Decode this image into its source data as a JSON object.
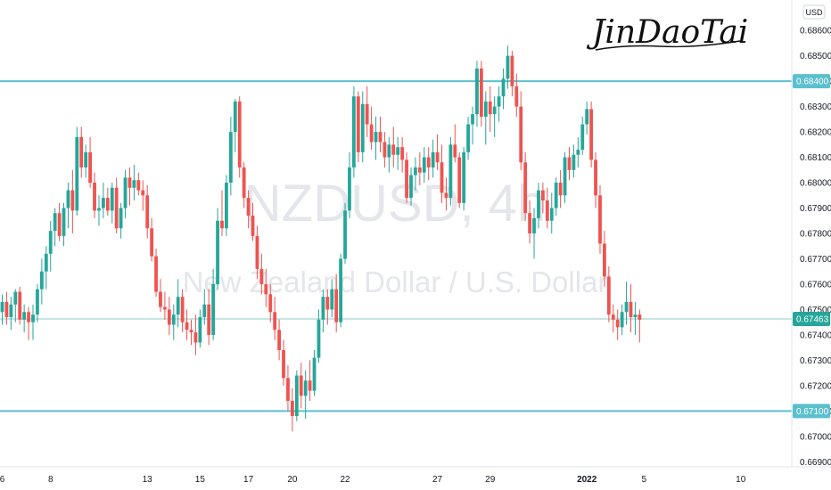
{
  "chart_data": {
    "type": "candlestick",
    "watermark": {
      "symbol": "NZDUSD, 4h",
      "description": "New Zealand Dollar / U.S. Dollar"
    },
    "signature": "JinDaoTai",
    "currency": "USD",
    "y_ticks": [
      "0.68600",
      "0.68500",
      "0.68400",
      "0.68300",
      "0.68200",
      "0.68100",
      "0.68000",
      "0.67900",
      "0.67800",
      "0.67700",
      "0.67600",
      "0.67500",
      "0.67400",
      "0.67300",
      "0.67200",
      "0.67100",
      "0.67000",
      "0.66900"
    ],
    "y_tick_values": [
      0.686,
      0.685,
      0.684,
      0.683,
      0.682,
      0.681,
      0.68,
      0.679,
      0.678,
      0.677,
      0.676,
      0.675,
      0.674,
      0.673,
      0.672,
      0.671,
      0.67,
      0.669
    ],
    "ylim": [
      0.6688,
      0.6872
    ],
    "x_ticks": [
      {
        "label": "6",
        "index": 0
      },
      {
        "label": "8",
        "index": 11
      },
      {
        "label": "13",
        "index": 33
      },
      {
        "label": "15",
        "index": 45
      },
      {
        "label": "17",
        "index": 56
      },
      {
        "label": "20",
        "index": 66
      },
      {
        "label": "22",
        "index": 78
      },
      {
        "label": "27",
        "index": 99
      },
      {
        "label": "29",
        "index": 111
      },
      {
        "label": "2022",
        "index": 133,
        "bold": true
      },
      {
        "label": "5",
        "index": 146
      },
      {
        "label": "10",
        "index": 168
      }
    ],
    "horizontal_levels": [
      {
        "value": 0.684,
        "label": "0.68400",
        "color": "#5bc0ce"
      },
      {
        "value": 0.671,
        "label": "0.67100",
        "color": "#5bc0ce"
      }
    ],
    "current_price": {
      "value": 0.67463,
      "label": "0.67463",
      "color": "#26a69a"
    },
    "colors": {
      "up": "#26a69a",
      "down": "#ef5350",
      "level": "#5bc0ce"
    },
    "candles_ohlc": [
      [
        0.6749,
        0.6756,
        0.6744,
        0.6753
      ],
      [
        0.6753,
        0.6757,
        0.6744,
        0.6747
      ],
      [
        0.6747,
        0.6755,
        0.6742,
        0.6752
      ],
      [
        0.6752,
        0.6758,
        0.6745,
        0.6757
      ],
      [
        0.6757,
        0.6759,
        0.6744,
        0.6746
      ],
      [
        0.6746,
        0.6752,
        0.6741,
        0.6749
      ],
      [
        0.6749,
        0.6751,
        0.6738,
        0.6745
      ],
      [
        0.6745,
        0.6752,
        0.6738,
        0.6748
      ],
      [
        0.6748,
        0.676,
        0.6745,
        0.6758
      ],
      [
        0.6758,
        0.677,
        0.6752,
        0.6765
      ],
      [
        0.6765,
        0.6775,
        0.6758,
        0.6772
      ],
      [
        0.6772,
        0.6785,
        0.6765,
        0.6781
      ],
      [
        0.6781,
        0.679,
        0.6775,
        0.6788
      ],
      [
        0.6788,
        0.6792,
        0.6777,
        0.6779
      ],
      [
        0.6779,
        0.6792,
        0.6775,
        0.679
      ],
      [
        0.679,
        0.68,
        0.6782,
        0.6797
      ],
      [
        0.6797,
        0.6805,
        0.678,
        0.6789
      ],
      [
        0.6789,
        0.6822,
        0.6787,
        0.6818
      ],
      [
        0.6818,
        0.6822,
        0.6802,
        0.6806
      ],
      [
        0.6806,
        0.6815,
        0.6802,
        0.6812
      ],
      [
        0.6812,
        0.6818,
        0.6798,
        0.68
      ],
      [
        0.68,
        0.6804,
        0.6786,
        0.6789
      ],
      [
        0.6789,
        0.6795,
        0.6783,
        0.679
      ],
      [
        0.679,
        0.68,
        0.6786,
        0.6794
      ],
      [
        0.6794,
        0.6798,
        0.6787,
        0.6789
      ],
      [
        0.6789,
        0.68,
        0.6784,
        0.6798
      ],
      [
        0.6798,
        0.6802,
        0.678,
        0.6782
      ],
      [
        0.6782,
        0.6792,
        0.6778,
        0.679
      ],
      [
        0.679,
        0.6805,
        0.6786,
        0.6802
      ],
      [
        0.6802,
        0.6806,
        0.6791,
        0.6798
      ],
      [
        0.6798,
        0.6807,
        0.6793,
        0.6801
      ],
      [
        0.6801,
        0.6804,
        0.6795,
        0.6797
      ],
      [
        0.6797,
        0.6801,
        0.6789,
        0.6795
      ],
      [
        0.6795,
        0.6799,
        0.6778,
        0.6782
      ],
      [
        0.6782,
        0.6786,
        0.6769,
        0.6771
      ],
      [
        0.6771,
        0.6774,
        0.6755,
        0.6757
      ],
      [
        0.6757,
        0.6762,
        0.6749,
        0.6751
      ],
      [
        0.6751,
        0.6757,
        0.6746,
        0.675
      ],
      [
        0.675,
        0.6755,
        0.674,
        0.6744
      ],
      [
        0.6744,
        0.6752,
        0.6738,
        0.6748
      ],
      [
        0.6748,
        0.6762,
        0.6743,
        0.6755
      ],
      [
        0.6755,
        0.6758,
        0.6741,
        0.6745
      ],
      [
        0.6745,
        0.675,
        0.6738,
        0.6742
      ],
      [
        0.6742,
        0.6746,
        0.6736,
        0.6741
      ],
      [
        0.6741,
        0.6748,
        0.6732,
        0.6737
      ],
      [
        0.6737,
        0.675,
        0.6735,
        0.6747
      ],
      [
        0.6747,
        0.6758,
        0.6744,
        0.6752
      ],
      [
        0.6752,
        0.6758,
        0.6736,
        0.674
      ],
      [
        0.674,
        0.6766,
        0.6738,
        0.676
      ],
      [
        0.676,
        0.679,
        0.6758,
        0.6785
      ],
      [
        0.6785,
        0.6797,
        0.6779,
        0.6782
      ],
      [
        0.6782,
        0.6803,
        0.6779,
        0.68
      ],
      [
        0.68,
        0.6826,
        0.6795,
        0.682
      ],
      [
        0.682,
        0.6833,
        0.6812,
        0.6832
      ],
      [
        0.6832,
        0.6834,
        0.6802,
        0.6806
      ],
      [
        0.6806,
        0.6808,
        0.679,
        0.6794
      ],
      [
        0.6794,
        0.6797,
        0.6782,
        0.6787
      ],
      [
        0.6787,
        0.6792,
        0.6777,
        0.6779
      ],
      [
        0.6779,
        0.6783,
        0.6762,
        0.6766
      ],
      [
        0.6766,
        0.6772,
        0.6756,
        0.676
      ],
      [
        0.676,
        0.6766,
        0.6751,
        0.6756
      ],
      [
        0.6756,
        0.676,
        0.6745,
        0.6749
      ],
      [
        0.6749,
        0.6755,
        0.6738,
        0.6742
      ],
      [
        0.6742,
        0.6746,
        0.673,
        0.6734
      ],
      [
        0.6734,
        0.6738,
        0.672,
        0.6723
      ],
      [
        0.6723,
        0.6728,
        0.671,
        0.6714
      ],
      [
        0.6714,
        0.6719,
        0.6702,
        0.6708
      ],
      [
        0.6708,
        0.6726,
        0.6706,
        0.6724
      ],
      [
        0.6724,
        0.6729,
        0.6711,
        0.6716
      ],
      [
        0.6716,
        0.6726,
        0.6707,
        0.6722
      ],
      [
        0.6722,
        0.673,
        0.6714,
        0.6718
      ],
      [
        0.6718,
        0.6734,
        0.6716,
        0.6731
      ],
      [
        0.6731,
        0.675,
        0.6729,
        0.6746
      ],
      [
        0.6746,
        0.6758,
        0.6741,
        0.6755
      ],
      [
        0.6755,
        0.6758,
        0.6744,
        0.675
      ],
      [
        0.675,
        0.6762,
        0.6747,
        0.6758
      ],
      [
        0.6758,
        0.6764,
        0.6741,
        0.6745
      ],
      [
        0.6745,
        0.6772,
        0.6743,
        0.677
      ],
      [
        0.677,
        0.6792,
        0.6768,
        0.6789
      ],
      [
        0.6789,
        0.6812,
        0.6786,
        0.6806
      ],
      [
        0.6806,
        0.6838,
        0.6802,
        0.6834
      ],
      [
        0.6834,
        0.6836,
        0.6808,
        0.6812
      ],
      [
        0.6812,
        0.6836,
        0.6808,
        0.6831
      ],
      [
        0.6831,
        0.6838,
        0.6818,
        0.6823
      ],
      [
        0.6823,
        0.683,
        0.6813,
        0.6816
      ],
      [
        0.6816,
        0.6826,
        0.6809,
        0.682
      ],
      [
        0.682,
        0.6826,
        0.6812,
        0.6816
      ],
      [
        0.6816,
        0.682,
        0.6806,
        0.681
      ],
      [
        0.681,
        0.6818,
        0.6804,
        0.6815
      ],
      [
        0.6815,
        0.6822,
        0.6806,
        0.6811
      ],
      [
        0.6811,
        0.6818,
        0.6805,
        0.6814
      ],
      [
        0.6814,
        0.6818,
        0.6804,
        0.6809
      ],
      [
        0.6809,
        0.6812,
        0.6792,
        0.6794
      ],
      [
        0.6794,
        0.6806,
        0.6791,
        0.6803
      ],
      [
        0.6803,
        0.681,
        0.6797,
        0.6806
      ],
      [
        0.6806,
        0.6812,
        0.6799,
        0.6804
      ],
      [
        0.6804,
        0.6814,
        0.68,
        0.681
      ],
      [
        0.681,
        0.6814,
        0.6801,
        0.6806
      ],
      [
        0.6806,
        0.6817,
        0.6802,
        0.6812
      ],
      [
        0.6812,
        0.6819,
        0.6805,
        0.6808
      ],
      [
        0.6808,
        0.6815,
        0.6792,
        0.6796
      ],
      [
        0.6796,
        0.6802,
        0.6789,
        0.6794
      ],
      [
        0.6794,
        0.6818,
        0.6791,
        0.6815
      ],
      [
        0.6815,
        0.6823,
        0.6808,
        0.681
      ],
      [
        0.681,
        0.6812,
        0.679,
        0.6792
      ],
      [
        0.6792,
        0.6814,
        0.6789,
        0.6812
      ],
      [
        0.6812,
        0.6826,
        0.6809,
        0.6823
      ],
      [
        0.6823,
        0.683,
        0.6815,
        0.6827
      ],
      [
        0.6827,
        0.6848,
        0.6822,
        0.6845
      ],
      [
        0.6845,
        0.6848,
        0.6822,
        0.6826
      ],
      [
        0.6826,
        0.6836,
        0.6815,
        0.6832
      ],
      [
        0.6832,
        0.6838,
        0.682,
        0.6827
      ],
      [
        0.6827,
        0.6834,
        0.6818,
        0.683
      ],
      [
        0.683,
        0.6838,
        0.6824,
        0.6834
      ],
      [
        0.6834,
        0.6845,
        0.6829,
        0.6841
      ],
      [
        0.6841,
        0.6854,
        0.6837,
        0.685
      ],
      [
        0.685,
        0.6852,
        0.6834,
        0.6838
      ],
      [
        0.6838,
        0.6843,
        0.6826,
        0.683
      ],
      [
        0.683,
        0.6836,
        0.6805,
        0.6808
      ],
      [
        0.6808,
        0.6812,
        0.6785,
        0.6788
      ],
      [
        0.6788,
        0.6793,
        0.6776,
        0.678
      ],
      [
        0.678,
        0.679,
        0.677,
        0.6786
      ],
      [
        0.6786,
        0.68,
        0.6782,
        0.6797
      ],
      [
        0.6797,
        0.68,
        0.6788,
        0.6793
      ],
      [
        0.6793,
        0.6798,
        0.6782,
        0.6785
      ],
      [
        0.6785,
        0.6796,
        0.678,
        0.679
      ],
      [
        0.679,
        0.6802,
        0.6787,
        0.68
      ],
      [
        0.68,
        0.6805,
        0.679,
        0.6795
      ],
      [
        0.6795,
        0.6812,
        0.6792,
        0.681
      ],
      [
        0.681,
        0.6814,
        0.6801,
        0.6805
      ],
      [
        0.6805,
        0.6815,
        0.6802,
        0.6811
      ],
      [
        0.6811,
        0.6818,
        0.6806,
        0.6813
      ],
      [
        0.6813,
        0.6826,
        0.6811,
        0.6823
      ],
      [
        0.6823,
        0.6832,
        0.6819,
        0.6829
      ],
      [
        0.6829,
        0.6832,
        0.6806,
        0.6809
      ],
      [
        0.6809,
        0.6812,
        0.679,
        0.6795
      ],
      [
        0.6795,
        0.6799,
        0.6772,
        0.6776
      ],
      [
        0.6776,
        0.6781,
        0.6759,
        0.6763
      ],
      [
        0.6763,
        0.6767,
        0.6745,
        0.6748
      ],
      [
        0.6748,
        0.6752,
        0.6741,
        0.6746
      ],
      [
        0.6746,
        0.675,
        0.6738,
        0.6743
      ],
      [
        0.6743,
        0.6752,
        0.674,
        0.6749
      ],
      [
        0.6749,
        0.6761,
        0.6744,
        0.6753
      ],
      [
        0.6753,
        0.676,
        0.6741,
        0.6747
      ],
      [
        0.6747,
        0.6753,
        0.674,
        0.6748
      ],
      [
        0.6748,
        0.675,
        0.6737,
        0.6746
      ]
    ]
  }
}
